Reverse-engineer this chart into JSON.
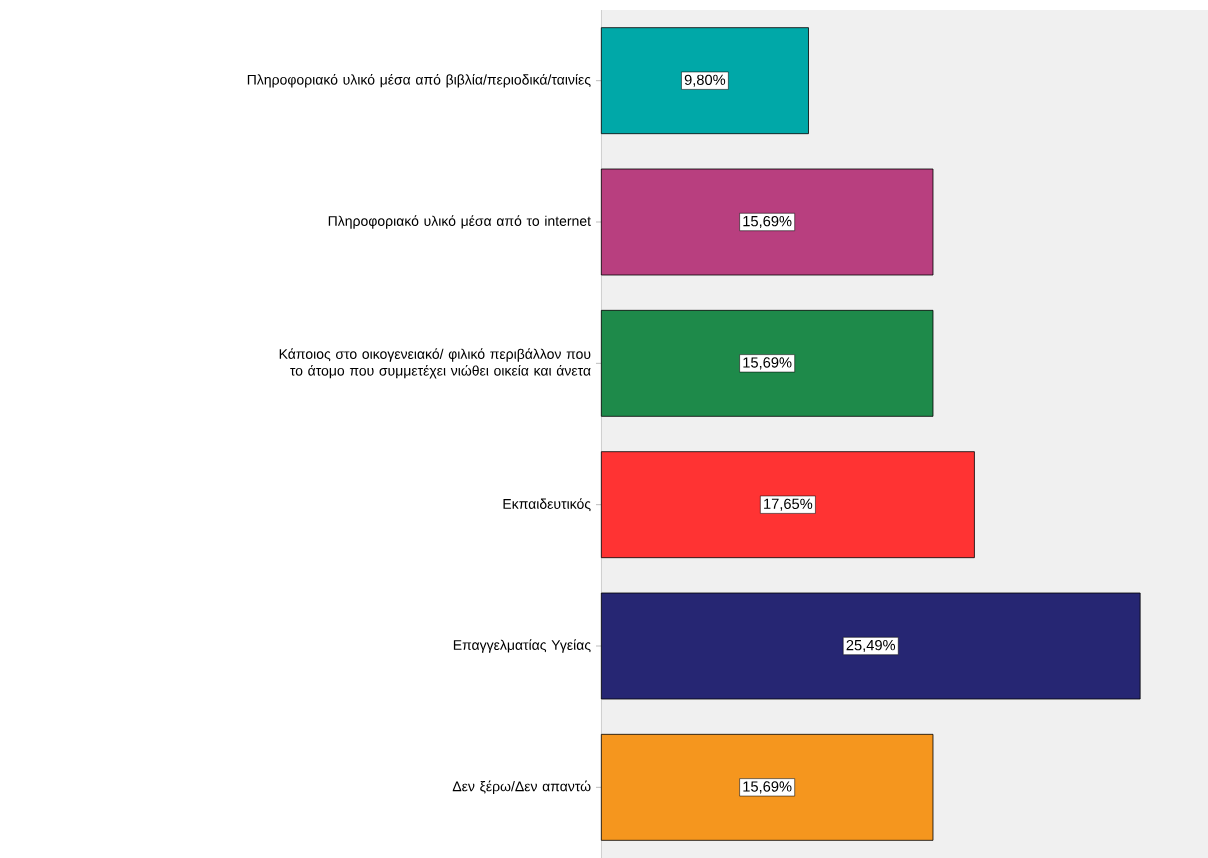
{
  "chart_data": {
    "type": "bar",
    "orientation": "horizontal",
    "categories": [
      "Πληροφοριακό υλικό μέσα από βιβλία/περιοδικά/ταινίες",
      "Πληροφοριακό υλικό μέσα από το internet",
      "Κάποιος στο οικογενειακό/ φιλικό περιβάλλον που το άτομο που συμμετέχει νιώθει οικεία και άνετα",
      "Εκπαιδευτικός",
      "Επαγγελματίας Υγείας",
      "Δεν ξέρω/Δεν απαντώ"
    ],
    "values": [
      9.8,
      15.69,
      15.69,
      17.65,
      25.49,
      15.69
    ],
    "colors": [
      "#00a8a8",
      "#b83f7f",
      "#1e8a4a",
      "#ff3333",
      "#262673",
      "#f5961e"
    ],
    "value_labels": [
      "9,80%",
      "15,69%",
      "15,69%",
      "17,65%",
      "25,49%",
      "15,69%"
    ],
    "xlim": [
      0,
      28.7
    ],
    "tick_labels": "y"
  }
}
